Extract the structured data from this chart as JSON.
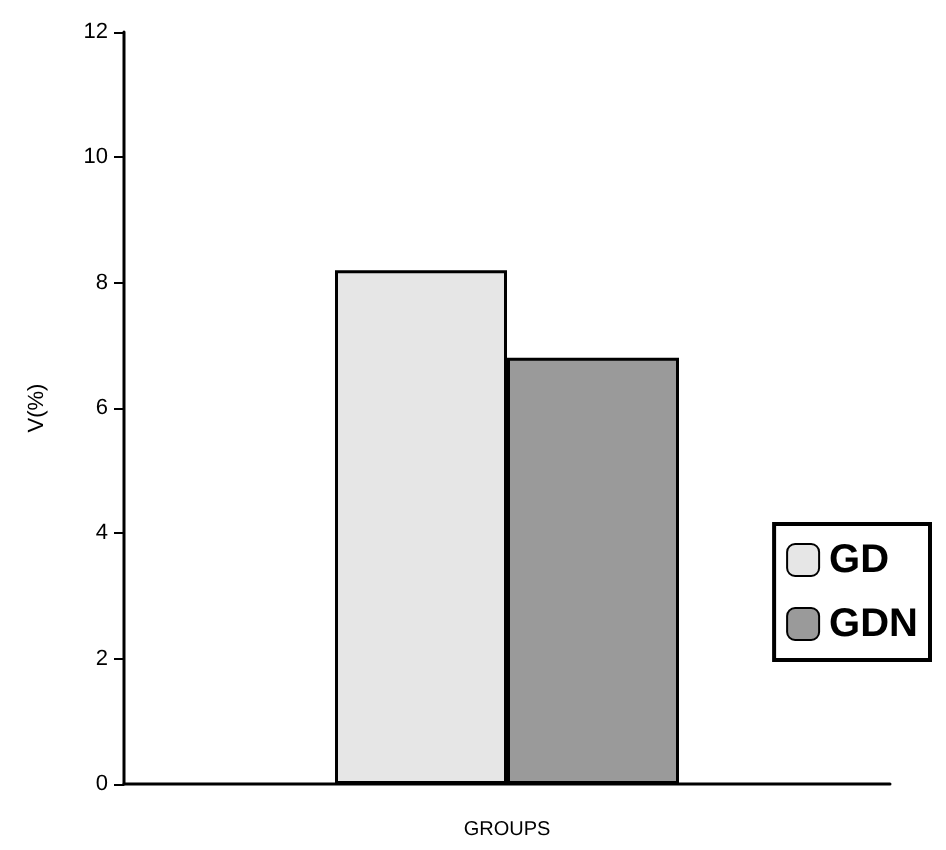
{
  "chart_data": {
    "type": "bar",
    "xlabel": "GROUPS",
    "ylabel": "V(%)",
    "categories": [
      null
    ],
    "series": [
      {
        "name": "GD",
        "color": "#e6e6e6",
        "values": [
          8.2
        ]
      },
      {
        "name": "GDN",
        "color": "#9a9a9a",
        "values": [
          6.8
        ]
      }
    ],
    "ylim": [
      0,
      12
    ],
    "yticks": [
      0,
      2,
      4,
      6,
      8,
      10,
      12
    ],
    "grid": false,
    "legend": "bottom right"
  }
}
